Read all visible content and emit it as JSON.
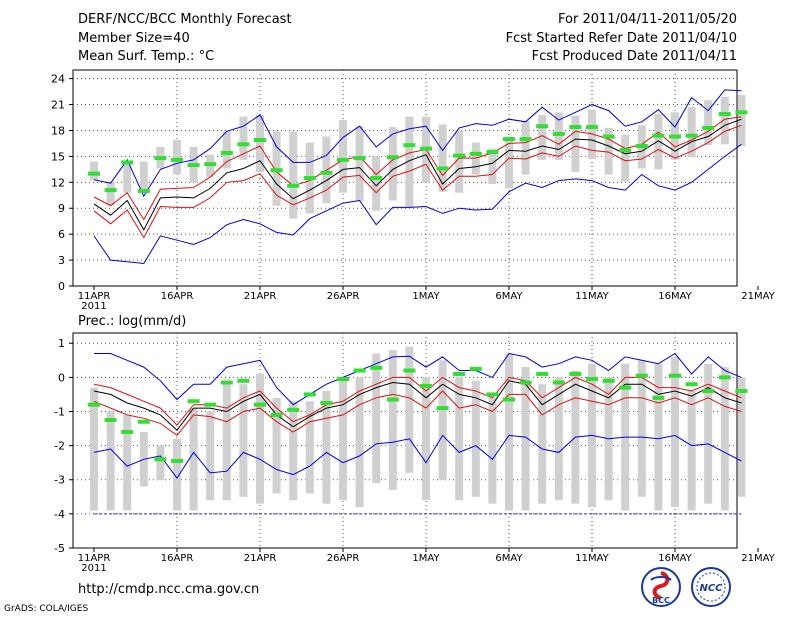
{
  "header": {
    "title": "DERF/NCC/BCC Monthly Forecast",
    "member_size": "Member Size=40",
    "variable": "Mean Surf. Temp.: °C",
    "period": "For 2011/04/11-2011/05/20",
    "refer_date": "Fcst Started Refer Date 2011/04/10",
    "produced_date": "Fcst Produced Date 2011/04/11"
  },
  "footer": {
    "url": "http://cmdp.ncc.cma.gov.cn",
    "credit": "GrADS: COLA/IGES",
    "logo_left_text": "BCC",
    "logo_right_text": "NCC"
  },
  "colors": {
    "envelope": "#0000dd",
    "spread": "#dd1111",
    "mean": "#000000",
    "member_box": "#d0d0d0",
    "observed": "#33dd33",
    "floor_line": "#3333aa"
  },
  "chart_data": [
    {
      "type": "box-line",
      "title": "Mean Surf. Temp.: °C",
      "ylabel": "°C",
      "ylim": [
        0,
        25
      ],
      "yticks": [
        0,
        3,
        6,
        9,
        12,
        15,
        18,
        21,
        24
      ],
      "xlim": [
        0,
        40
      ],
      "xticks": [
        {
          "x": 0,
          "label": "11APR",
          "sublabel": "2011"
        },
        {
          "x": 5,
          "label": "16APR"
        },
        {
          "x": 10,
          "label": "21APR"
        },
        {
          "x": 15,
          "label": "26APR"
        },
        {
          "x": 20,
          "label": "1MAY"
        },
        {
          "x": 25,
          "label": "6MAY"
        },
        {
          "x": 30,
          "label": "11MAY"
        },
        {
          "x": 35,
          "label": "16MAY"
        },
        {
          "x": 40,
          "label": "21MAY"
        }
      ],
      "grid": true,
      "days": [
        0,
        1,
        2,
        3,
        4,
        5,
        6,
        7,
        8,
        9,
        10,
        11,
        12,
        13,
        14,
        15,
        16,
        17,
        18,
        19,
        20,
        21,
        22,
        23,
        24,
        25,
        26,
        27,
        28,
        29,
        30,
        31,
        32,
        33,
        34,
        35,
        36,
        37,
        38,
        39
      ],
      "max": [
        12.3,
        11.9,
        14.6,
        10.4,
        13.5,
        14.2,
        14.6,
        15.9,
        17.9,
        18.5,
        19.8,
        16.1,
        14.3,
        14.3,
        15.1,
        17.2,
        18.5,
        16.1,
        17.6,
        18.2,
        18.5,
        15.7,
        18.3,
        18.8,
        18.6,
        19.3,
        19.0,
        20.7,
        19.2,
        20.1,
        21.0,
        20.3,
        18.5,
        19.0,
        20.4,
        18.4,
        21.8,
        20.3,
        22.7,
        22.6
      ],
      "spread_high": [
        10.3,
        9.3,
        10.8,
        7.7,
        11.2,
        11.3,
        11.4,
        12.6,
        14.4,
        15.3,
        16.2,
        13.2,
        11.6,
        12.2,
        13.4,
        14.6,
        15.0,
        12.9,
        14.6,
        15.4,
        15.8,
        12.8,
        14.8,
        14.8,
        15.4,
        16.5,
        16.6,
        17.4,
        16.4,
        17.9,
        17.6,
        17.0,
        15.9,
        16.4,
        17.8,
        16.1,
        16.9,
        17.9,
        19.3,
        19.6
      ],
      "mean": [
        9.5,
        8.2,
        9.9,
        6.5,
        10.2,
        10.3,
        10.2,
        11.3,
        13.1,
        13.6,
        14.5,
        11.8,
        10.1,
        11.1,
        12.2,
        13.5,
        13.7,
        11.6,
        13.5,
        14.5,
        15.2,
        11.8,
        13.6,
        13.8,
        14.2,
        15.7,
        15.6,
        16.2,
        15.8,
        17.0,
        16.9,
        16.2,
        15.3,
        15.6,
        16.8,
        15.6,
        16.7,
        17.3,
        18.6,
        19.3
      ],
      "spread_low": [
        8.7,
        7.2,
        8.8,
        5.6,
        9.2,
        9.1,
        9.1,
        10.2,
        12.0,
        12.2,
        13.0,
        10.5,
        9.4,
        10.2,
        11.1,
        12.6,
        12.8,
        10.8,
        12.7,
        13.3,
        14.1,
        11.1,
        12.7,
        12.7,
        12.9,
        14.8,
        14.7,
        15.4,
        15.0,
        16.2,
        15.7,
        15.5,
        14.5,
        14.7,
        15.8,
        14.8,
        15.6,
        16.6,
        17.9,
        18.6
      ],
      "min": [
        5.8,
        3.0,
        2.8,
        2.6,
        5.8,
        5.3,
        4.8,
        5.6,
        7.1,
        7.7,
        7.2,
        6.2,
        5.9,
        7.8,
        8.7,
        9.6,
        9.9,
        7.1,
        9.1,
        9.1,
        9.2,
        8.4,
        9.0,
        8.8,
        8.9,
        10.9,
        11.9,
        11.4,
        12.2,
        12.4,
        12.2,
        11.4,
        11.1,
        12.9,
        11.6,
        11.1,
        12.0,
        13.5,
        15.0,
        16.4
      ],
      "box_low": [
        12.2,
        9.3,
        10.8,
        10.8,
        13.6,
        12.9,
        12.0,
        12.6,
        13.6,
        14.6,
        13.2,
        9.3,
        7.8,
        8.4,
        9.6,
        10.8,
        9.8,
        8.7,
        9.9,
        9.1,
        12.0,
        10.9,
        10.8,
        12.9,
        11.8,
        11.3,
        12.9,
        14.6,
        14.6,
        13.2,
        14.7,
        12.9,
        12.1,
        13.6,
        13.5,
        14.6,
        14.9,
        16.3,
        16.4,
        16.2
      ],
      "box_high": [
        14.4,
        12.1,
        14.5,
        14.4,
        16.1,
        16.9,
        16.1,
        15.2,
        17.9,
        19.6,
        19.8,
        17.9,
        17.9,
        16.6,
        17.3,
        19.2,
        18.5,
        15.0,
        18.4,
        19.6,
        19.6,
        18.7,
        18.0,
        16.6,
        15.9,
        17.3,
        19.1,
        19.8,
        20.1,
        19.7,
        20.4,
        18.3,
        17.5,
        18.6,
        19.9,
        20.1,
        20.7,
        21.5,
        21.9,
        22.1
      ],
      "observed": [
        13.0,
        11.1,
        14.3,
        11.0,
        14.8,
        14.6,
        14.0,
        14.1,
        15.4,
        16.4,
        16.9,
        13.4,
        11.6,
        12.5,
        13.1,
        14.6,
        14.8,
        12.5,
        14.9,
        16.3,
        15.9,
        13.6,
        15.1,
        15.3,
        15.5,
        17.0,
        17.0,
        18.5,
        17.6,
        18.4,
        18.4,
        17.3,
        15.7,
        16.2,
        17.4,
        17.3,
        17.4,
        18.3,
        19.9,
        20.1
      ]
    },
    {
      "type": "box-line",
      "title": "Prec.: log(mm/d)",
      "ylabel": "log(mm/d)",
      "ylim": [
        -5,
        1.3
      ],
      "yticks": [
        -5,
        -4,
        -3,
        -2,
        -1,
        0,
        1
      ],
      "xlim": [
        0,
        40
      ],
      "xticks": [
        {
          "x": 0,
          "label": "11APR",
          "sublabel": "2011"
        },
        {
          "x": 5,
          "label": "16APR"
        },
        {
          "x": 10,
          "label": "21APR"
        },
        {
          "x": 15,
          "label": "26APR"
        },
        {
          "x": 20,
          "label": "1MAY"
        },
        {
          "x": 25,
          "label": "6MAY"
        },
        {
          "x": 30,
          "label": "11MAY"
        },
        {
          "x": 35,
          "label": "16MAY"
        },
        {
          "x": 40,
          "label": "21MAY"
        }
      ],
      "grid": true,
      "floor_value": -4,
      "days": [
        0,
        1,
        2,
        3,
        4,
        5,
        6,
        7,
        8,
        9,
        10,
        11,
        12,
        13,
        14,
        15,
        16,
        17,
        18,
        19,
        20,
        21,
        22,
        23,
        24,
        25,
        26,
        27,
        28,
        29,
        30,
        31,
        32,
        33,
        34,
        35,
        36,
        37,
        38,
        39
      ],
      "max": [
        0.7,
        0.7,
        0.5,
        0.3,
        -0.1,
        -0.65,
        -0.2,
        -0.2,
        0.3,
        0.4,
        0.5,
        -0.3,
        -0.8,
        -0.5,
        -0.2,
        0.0,
        0.2,
        0.4,
        0.6,
        0.62,
        0.3,
        0.6,
        0.2,
        0.2,
        0.0,
        0.7,
        0.6,
        0.3,
        0.4,
        0.6,
        0.5,
        0.2,
        0.6,
        0.5,
        0.4,
        0.7,
        0.1,
        0.6,
        0.2,
        0.0
      ],
      "spread_high": [
        -0.2,
        -0.3,
        -0.5,
        -0.7,
        -0.9,
        -1.4,
        -0.8,
        -0.8,
        -0.9,
        -0.6,
        -0.4,
        -0.9,
        -1.3,
        -1.1,
        -0.8,
        -0.7,
        -0.4,
        -0.2,
        0.0,
        0.0,
        -0.4,
        0.0,
        -0.3,
        -0.4,
        -0.6,
        0.0,
        -0.1,
        -0.6,
        -0.3,
        0.0,
        -0.2,
        -0.5,
        0.0,
        0.0,
        -0.3,
        -0.3,
        -0.4,
        -0.2,
        -0.4,
        -0.6
      ],
      "mean": [
        -0.4,
        -0.5,
        -0.75,
        -0.9,
        -1.1,
        -1.55,
        -0.9,
        -0.9,
        -1.0,
        -0.7,
        -0.5,
        -1.1,
        -1.45,
        -1.15,
        -0.9,
        -0.8,
        -0.5,
        -0.3,
        -0.15,
        -0.2,
        -0.6,
        -0.2,
        -0.5,
        -0.6,
        -0.8,
        -0.1,
        -0.2,
        -0.8,
        -0.5,
        -0.2,
        -0.4,
        -0.6,
        -0.2,
        -0.2,
        -0.5,
        -0.4,
        -0.55,
        -0.3,
        -0.6,
        -0.75
      ],
      "spread_low": [
        -0.7,
        -0.9,
        -1.1,
        -1.2,
        -1.35,
        -1.7,
        -1.1,
        -1.15,
        -1.3,
        -1.0,
        -0.9,
        -1.3,
        -1.6,
        -1.3,
        -1.2,
        -1.1,
        -0.8,
        -0.6,
        -0.5,
        -0.6,
        -0.9,
        -0.4,
        -0.9,
        -0.8,
        -1.0,
        -0.5,
        -0.5,
        -1.1,
        -0.8,
        -0.6,
        -0.7,
        -0.8,
        -0.6,
        -0.6,
        -0.75,
        -0.6,
        -0.8,
        -0.6,
        -0.85,
        -1.0
      ],
      "min": [
        -2.2,
        -2.1,
        -2.6,
        -2.4,
        -2.3,
        -2.95,
        -2.2,
        -2.8,
        -2.75,
        -2.2,
        -2.4,
        -2.7,
        -2.85,
        -2.6,
        -2.2,
        -2.5,
        -2.3,
        -1.95,
        -1.9,
        -1.8,
        -2.5,
        -1.7,
        -2.2,
        -2.0,
        -2.4,
        -1.7,
        -1.75,
        -2.1,
        -2.2,
        -1.75,
        -1.7,
        -1.8,
        -1.75,
        -1.75,
        -1.8,
        -1.7,
        -2.0,
        -1.95,
        -2.2,
        -2.45
      ],
      "box_low": [
        -3.9,
        -3.9,
        -3.9,
        -3.2,
        -3.0,
        -3.9,
        -3.9,
        -3.6,
        -3.6,
        -3.5,
        -3.7,
        -3.4,
        -3.6,
        -3.4,
        -3.7,
        -3.6,
        -3.8,
        -3.1,
        -3.3,
        -2.8,
        -3.6,
        -3.0,
        -3.6,
        -3.5,
        -3.7,
        -3.9,
        -3.9,
        -3.7,
        -3.6,
        -3.7,
        -3.8,
        -3.6,
        -3.9,
        -3.5,
        -3.9,
        -3.8,
        -3.9,
        -3.7,
        -3.9,
        -3.5
      ],
      "box_high": [
        -0.3,
        -1.0,
        -1.1,
        -1.6,
        -2.0,
        -1.8,
        -0.9,
        -1.0,
        -0.2,
        -0.2,
        0.1,
        -0.6,
        -0.7,
        -0.7,
        -0.4,
        -0.1,
        0.0,
        0.7,
        0.8,
        0.9,
        0.0,
        0.5,
        0.0,
        -0.1,
        -0.6,
        0.7,
        0.3,
        -0.2,
        0.0,
        0.2,
        0.4,
        0.0,
        0.4,
        0.5,
        0.4,
        0.6,
        -0.4,
        0.4,
        0.3,
        0.0
      ],
      "observed": [
        -0.8,
        -1.25,
        -1.6,
        -1.3,
        -2.4,
        -2.45,
        -0.7,
        -0.8,
        -0.15,
        -0.1,
        -0.8,
        -1.1,
        -0.95,
        -0.5,
        -0.75,
        -0.05,
        0.2,
        0.28,
        -0.65,
        0.2,
        -0.25,
        -0.9,
        0.1,
        0.25,
        -0.5,
        -0.65,
        -0.15,
        0.1,
        -0.15,
        0.1,
        -0.05,
        -0.1,
        -0.3,
        0.05,
        -0.6,
        0.05,
        -0.2,
        -0.4,
        0.0,
        -0.4
      ]
    }
  ]
}
